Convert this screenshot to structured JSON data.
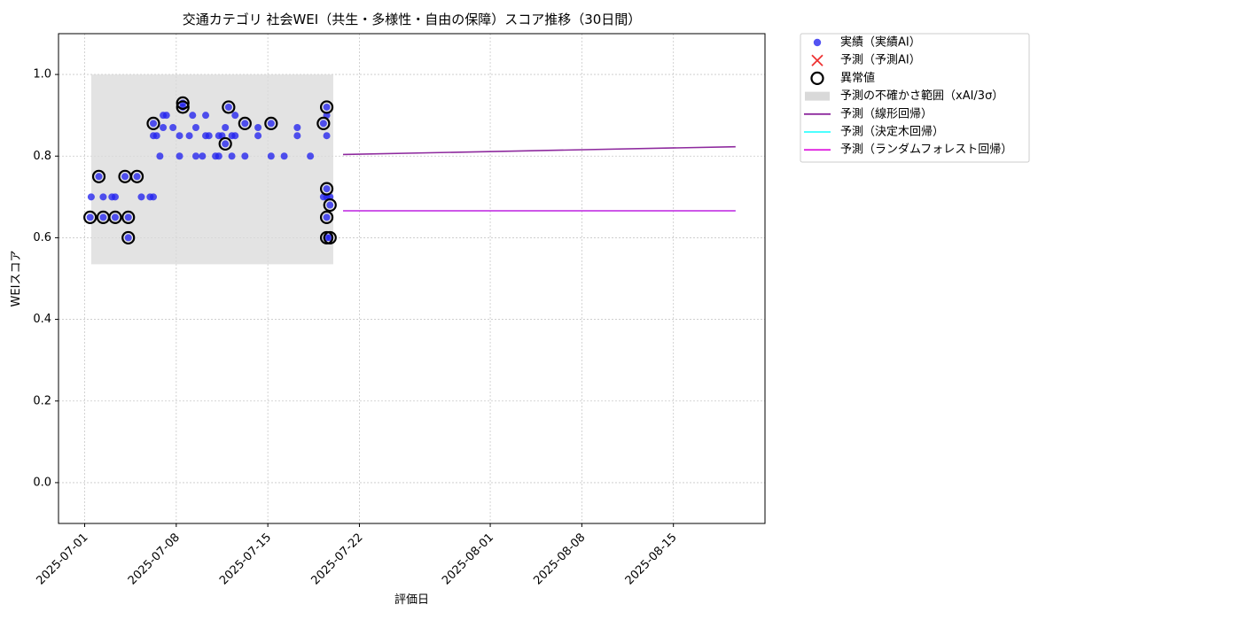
{
  "chart_data": {
    "type": "scatter",
    "title": "交通カテゴリ 社会WEI（共生・多様性・自由の保障）スコア推移（30日間）",
    "xlabel": "評価日",
    "ylabel": "WEIスコア",
    "x_type": "date",
    "xlim": [
      "2025-06-29",
      "2025-08-22"
    ],
    "ylim": [
      -0.1,
      1.1
    ],
    "x_ticks": [
      "2025-07-01",
      "2025-07-08",
      "2025-07-15",
      "2025-07-22",
      "2025-08-01",
      "2025-08-08",
      "2025-08-15"
    ],
    "y_ticks": [
      0.0,
      0.2,
      0.4,
      0.6,
      0.8,
      1.0
    ],
    "y_tick_labels": [
      "0.0",
      "0.2",
      "0.4",
      "0.6",
      "0.8",
      "1.0"
    ],
    "grid": true,
    "legend_position": "outside-top-right",
    "colors": {
      "actual": "#2222ee",
      "forecast_ai": "#ee3333",
      "anomaly": "#000000",
      "uncertainty": "#d9d9d9",
      "linear": "#8e2a9e",
      "tree": "#33ffff",
      "forest": "#e020e0"
    },
    "uncertainty_band": {
      "x": [
        "2025-07-01 12:00",
        "2025-07-20"
      ],
      "y": [
        0.535,
        1.0
      ]
    },
    "series": [
      {
        "name": "実績（実績AI）",
        "type": "scatter",
        "points": [
          [
            "2025-07-01 10:00",
            0.65
          ],
          [
            "2025-07-01 12:00",
            0.7
          ],
          [
            "2025-07-02 02:00",
            0.75
          ],
          [
            "2025-07-02 10:00",
            0.65
          ],
          [
            "2025-07-02 10:00",
            0.7
          ],
          [
            "2025-07-03 02:00",
            0.7
          ],
          [
            "2025-07-03 08:00",
            0.65
          ],
          [
            "2025-07-03 08:00",
            0.7
          ],
          [
            "2025-07-04 02:00",
            0.75
          ],
          [
            "2025-07-04 08:00",
            0.65
          ],
          [
            "2025-07-04 08:00",
            0.6
          ],
          [
            "2025-07-05 00:00",
            0.75
          ],
          [
            "2025-07-05 08:00",
            0.7
          ],
          [
            "2025-07-06 00:00",
            0.7
          ],
          [
            "2025-07-06 06:00",
            0.7
          ],
          [
            "2025-07-06 06:00",
            0.85
          ],
          [
            "2025-07-06 06:00",
            0.88
          ],
          [
            "2025-07-06 12:00",
            0.85
          ],
          [
            "2025-07-06 18:00",
            0.8
          ],
          [
            "2025-07-07 00:00",
            0.87
          ],
          [
            "2025-07-07 00:00",
            0.9
          ],
          [
            "2025-07-07 06:00",
            0.9
          ],
          [
            "2025-07-07 18:00",
            0.87
          ],
          [
            "2025-07-08 06:00",
            0.8
          ],
          [
            "2025-07-08 06:00",
            0.85
          ],
          [
            "2025-07-08 12:00",
            0.92
          ],
          [
            "2025-07-08 12:00",
            0.93
          ],
          [
            "2025-07-09 00:00",
            0.85
          ],
          [
            "2025-07-09 06:00",
            0.9
          ],
          [
            "2025-07-09 12:00",
            0.87
          ],
          [
            "2025-07-09 12:00",
            0.8
          ],
          [
            "2025-07-10 00:00",
            0.8
          ],
          [
            "2025-07-10 06:00",
            0.85
          ],
          [
            "2025-07-10 06:00",
            0.9
          ],
          [
            "2025-07-10 12:00",
            0.85
          ],
          [
            "2025-07-11 00:00",
            0.8
          ],
          [
            "2025-07-11 06:00",
            0.8
          ],
          [
            "2025-07-11 06:00",
            0.85
          ],
          [
            "2025-07-11 12:00",
            0.85
          ],
          [
            "2025-07-11 18:00",
            0.83
          ],
          [
            "2025-07-11 18:00",
            0.87
          ],
          [
            "2025-07-12 00:00",
            0.92
          ],
          [
            "2025-07-12 06:00",
            0.85
          ],
          [
            "2025-07-12 06:00",
            0.8
          ],
          [
            "2025-07-12 12:00",
            0.85
          ],
          [
            "2025-07-12 12:00",
            0.9
          ],
          [
            "2025-07-13 06:00",
            0.88
          ],
          [
            "2025-07-13 06:00",
            0.8
          ],
          [
            "2025-07-14 06:00",
            0.87
          ],
          [
            "2025-07-14 06:00",
            0.85
          ],
          [
            "2025-07-15 06:00",
            0.88
          ],
          [
            "2025-07-15 06:00",
            0.8
          ],
          [
            "2025-07-16 06:00",
            0.8
          ],
          [
            "2025-07-17 06:00",
            0.87
          ],
          [
            "2025-07-17 06:00",
            0.85
          ],
          [
            "2025-07-18 06:00",
            0.8
          ],
          [
            "2025-07-19 06:00",
            0.88
          ],
          [
            "2025-07-19 06:00",
            0.7
          ],
          [
            "2025-07-19 12:00",
            0.72
          ],
          [
            "2025-07-19 12:00",
            0.65
          ],
          [
            "2025-07-19 12:00",
            0.85
          ],
          [
            "2025-07-19 12:00",
            0.92
          ],
          [
            "2025-07-19 12:00",
            0.9
          ],
          [
            "2025-07-19 12:00",
            0.7
          ],
          [
            "2025-07-19 12:00",
            0.6
          ],
          [
            "2025-07-19 18:00",
            0.68
          ],
          [
            "2025-07-19 18:00",
            0.6
          ],
          [
            "2025-07-19 18:00",
            0.7
          ]
        ]
      },
      {
        "name": "予測（予測AI）",
        "type": "scatter",
        "points": []
      },
      {
        "name": "異常値",
        "type": "scatter",
        "points": [
          [
            "2025-07-01 10:00",
            0.65
          ],
          [
            "2025-07-02 02:00",
            0.75
          ],
          [
            "2025-07-02 10:00",
            0.65
          ],
          [
            "2025-07-03 08:00",
            0.65
          ],
          [
            "2025-07-04 02:00",
            0.75
          ],
          [
            "2025-07-04 08:00",
            0.65
          ],
          [
            "2025-07-04 08:00",
            0.6
          ],
          [
            "2025-07-05 00:00",
            0.75
          ],
          [
            "2025-07-06 06:00",
            0.88
          ],
          [
            "2025-07-08 12:00",
            0.92
          ],
          [
            "2025-07-08 12:00",
            0.93
          ],
          [
            "2025-07-11 18:00",
            0.83
          ],
          [
            "2025-07-12 00:00",
            0.92
          ],
          [
            "2025-07-13 06:00",
            0.88
          ],
          [
            "2025-07-15 06:00",
            0.88
          ],
          [
            "2025-07-19 06:00",
            0.88
          ],
          [
            "2025-07-19 12:00",
            0.92
          ],
          [
            "2025-07-19 12:00",
            0.72
          ],
          [
            "2025-07-19 12:00",
            0.65
          ],
          [
            "2025-07-19 12:00",
            0.6
          ],
          [
            "2025-07-19 18:00",
            0.68
          ],
          [
            "2025-07-19 18:00",
            0.6
          ]
        ]
      },
      {
        "name": "予測（線形回帰）",
        "type": "line",
        "points": [
          [
            "2025-07-20 18:00",
            0.804
          ],
          [
            "2025-08-19 18:00",
            0.823
          ]
        ]
      },
      {
        "name": "予測（決定木回帰）",
        "type": "line",
        "points": [
          [
            "2025-07-20 18:00",
            0.666
          ],
          [
            "2025-08-19 18:00",
            0.666
          ]
        ]
      },
      {
        "name": "予測（ランダムフォレスト回帰）",
        "type": "line",
        "points": [
          [
            "2025-07-20 18:00",
            0.666
          ],
          [
            "2025-08-19 18:00",
            0.666
          ]
        ]
      }
    ],
    "legend": [
      {
        "label": "実績（実績AI）",
        "marker": "dot"
      },
      {
        "label": "予測（予測AI）",
        "marker": "x"
      },
      {
        "label": "異常値",
        "marker": "ring"
      },
      {
        "label": "予測の不確かさ範囲（xAI/3σ）",
        "marker": "band"
      },
      {
        "label": "予測（線形回帰）",
        "marker": "line-linear"
      },
      {
        "label": "予測（決定木回帰）",
        "marker": "line-tree"
      },
      {
        "label": "予測（ランダムフォレスト回帰）",
        "marker": "line-forest"
      }
    ]
  }
}
